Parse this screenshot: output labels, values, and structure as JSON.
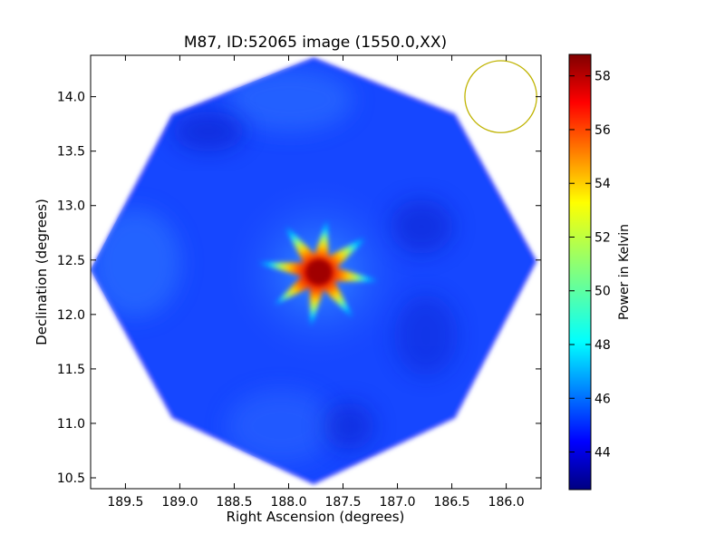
{
  "chart_data": {
    "type": "heatmap",
    "title": "M87, ID:52065 image (1550.0,XX)",
    "xlabel": "Right Ascension (degrees)",
    "ylabel": "Declination (degrees)",
    "xlim": [
      189.82,
      185.68
    ],
    "ylim": [
      10.4,
      14.38
    ],
    "x_ticks": [
      189.5,
      189.0,
      188.5,
      188.0,
      187.5,
      187.0,
      186.5,
      186.0
    ],
    "x_tick_labels": [
      "189.5",
      "189.0",
      "188.5",
      "188.0",
      "187.5",
      "187.0",
      "186.5",
      "186.0"
    ],
    "y_ticks": [
      10.5,
      11.0,
      11.5,
      12.0,
      12.5,
      13.0,
      13.5,
      14.0
    ],
    "y_tick_labels": [
      "10.5",
      "11.0",
      "11.5",
      "12.0",
      "12.5",
      "13.0",
      "13.5",
      "14.0"
    ],
    "colormap": "jet",
    "colorbar": {
      "label": "Power in Kelvin",
      "range": [
        42.6,
        58.8
      ],
      "ticks": [
        44,
        46,
        48,
        50,
        52,
        54,
        56,
        58
      ],
      "tick_labels": [
        "44",
        "46",
        "48",
        "50",
        "52",
        "54",
        "56",
        "58"
      ]
    },
    "field_outline": {
      "shape": "octagon",
      "vertices": [
        [
          187.77,
          14.36
        ],
        [
          186.47,
          13.84
        ],
        [
          185.72,
          12.49
        ],
        [
          186.47,
          11.05
        ],
        [
          187.77,
          10.44
        ],
        [
          189.07,
          11.05
        ],
        [
          189.82,
          12.41
        ],
        [
          189.07,
          13.84
        ]
      ]
    },
    "background_level": 45.0,
    "source": {
      "ra": 187.72,
      "dec": 12.39,
      "peak": 58.0,
      "arms": 8
    },
    "beam_circle": {
      "ra": 186.05,
      "dec": 14.0,
      "radius_deg": 0.33,
      "color": "#bfb300"
    }
  }
}
